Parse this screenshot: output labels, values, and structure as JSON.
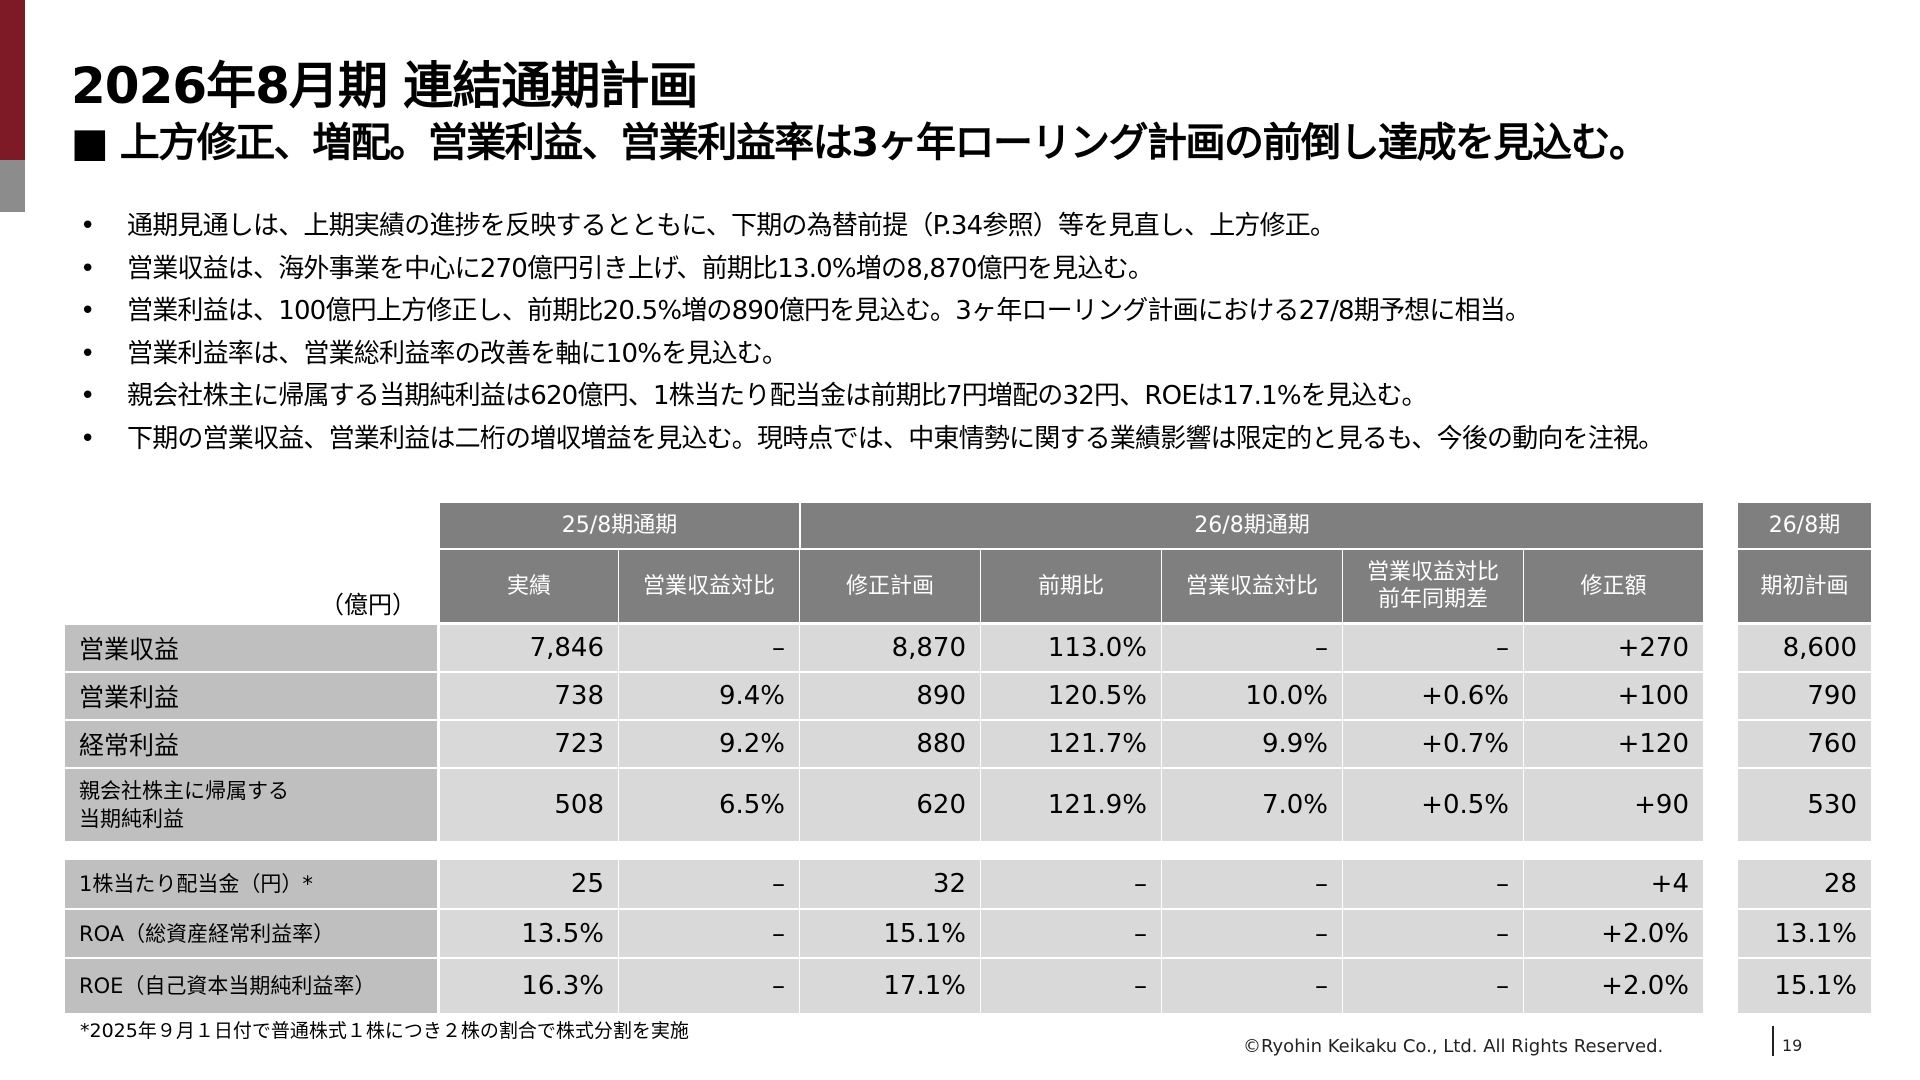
{
  "title": "2026年8月期 連結通期計画",
  "subtitle": "■ 上方修正、増配。営業利益、営業利益率は3ヶ年ローリング計画の前倒し達成を見込む。",
  "bullets": [
    "通期見通しは、上期実績の進捗を反映するとともに、下期の為替前提（P.34参照）等を見直し、上方修正。",
    "営業収益は、海外事業を中心に270億円引き上げ、前期比13.0%増の8,870億円を見込む。",
    "営業利益は、100億円上方修正し、前期比20.5%増の890億円を見込む。3ヶ年ローリング計画における27/8期予想に相当。",
    "営業利益率は、営業総利益率の改善を軸に10%を見込む。",
    "親会社株主に帰属する当期純利益は620億円、1株当たり配当金は前期比7円増配の32円、ROEは17.1%を見込む。",
    "下期の営業収益、営業利益は二桁の増収増益を見込む。現時点では、中東情勢に関する業績影響は限定的と見るも、今後の動向を注視。"
  ],
  "table": {
    "unit": "（億円）",
    "groups": [
      "25/8期通期",
      "26/8期通期",
      "26/8期"
    ],
    "columns": [
      "実績",
      "営業収益対比",
      "修正計画",
      "前期比",
      "営業収益対比",
      "営業収益対比\n前年同期差",
      "修正額",
      "期初計画"
    ],
    "rows": [
      {
        "label": "営業収益",
        "values": [
          "7,846",
          "–",
          "8,870",
          "113.0%",
          "–",
          "–",
          "+270",
          "8,600"
        ]
      },
      {
        "label": "営業利益",
        "values": [
          "738",
          "9.4%",
          "890",
          "120.5%",
          "10.0%",
          "+0.6%",
          "+100",
          "790"
        ]
      },
      {
        "label": "経常利益",
        "values": [
          "723",
          "9.2%",
          "880",
          "121.7%",
          "9.9%",
          "+0.7%",
          "+120",
          "760"
        ]
      },
      {
        "label": "親会社株主に帰属する\n当期純利益",
        "values": [
          "508",
          "6.5%",
          "620",
          "121.9%",
          "7.0%",
          "+0.5%",
          "+90",
          "530"
        ]
      },
      {
        "label": "1株当たり配当金（円）*",
        "values": [
          "25",
          "–",
          "32",
          "–",
          "–",
          "–",
          "+4",
          "28"
        ]
      },
      {
        "label": "ROA（総資産経常利益率）",
        "values": [
          "13.5%",
          "–",
          "15.1%",
          "–",
          "–",
          "–",
          "+2.0%",
          "13.1%"
        ]
      },
      {
        "label": "ROE（自己資本当期純利益率）",
        "values": [
          "16.3%",
          "–",
          "17.1%",
          "–",
          "–",
          "–",
          "+2.0%",
          "15.1%"
        ]
      }
    ]
  },
  "footnote": "*2025年９月１日付で普通株式１株につき２株の割合で株式分割を実施",
  "copyright": "©Ryohin Keikaku Co., Ltd. All Rights Reserved.",
  "page_number": "19",
  "colors": {
    "accent": "#7d1a25",
    "header": "#7f7f7f",
    "label_cell": "#bfbfbf",
    "data_cell": "#d9d9d9"
  }
}
